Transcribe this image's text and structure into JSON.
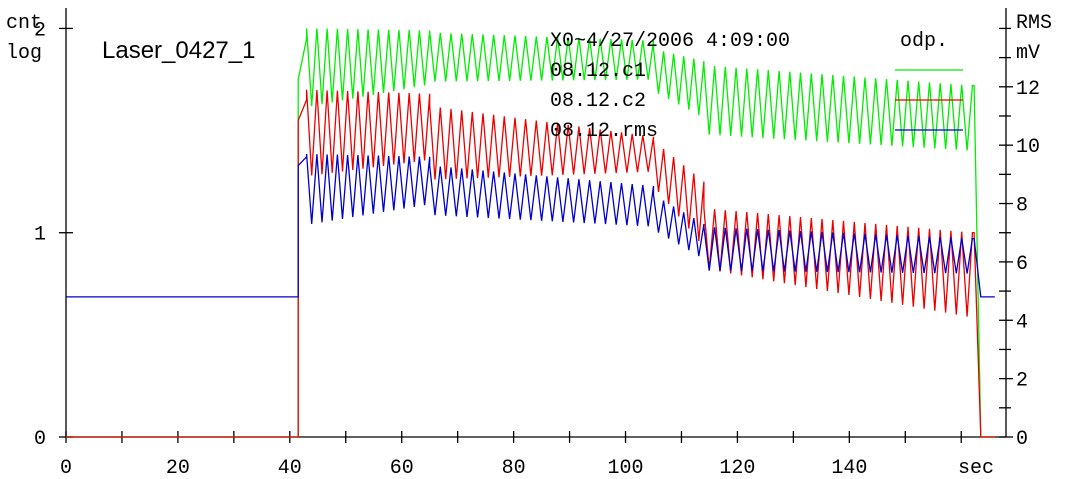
{
  "chart_data": {
    "type": "line",
    "title": "Laser_0427_1",
    "header": "X0~4/27/2006 4:09:00",
    "legend_title": "odp.",
    "left_axis": {
      "label_top": "cnt",
      "label_bottom": "log",
      "ylim": [
        0,
        2.1
      ],
      "ticks": [
        0,
        1,
        2
      ]
    },
    "right_axis": {
      "label_top": "RMS",
      "label_bottom": "mV",
      "ylim": [
        0,
        14.7
      ],
      "ticks": [
        0,
        2,
        4,
        6,
        8,
        10,
        12
      ]
    },
    "x_axis": {
      "label": "sec",
      "xlim": [
        0,
        168
      ],
      "ticks": [
        0,
        20,
        40,
        60,
        80,
        100,
        120,
        140
      ]
    },
    "series": [
      {
        "name": "08.12.c1",
        "color": "#00ee00",
        "axis": "left",
        "baseline": 0,
        "on_start": 41.5,
        "on_end": 163.5,
        "segments": [
          {
            "x0": 41.5,
            "x1": 43,
            "high": [
              1.75,
              1.95
            ],
            "low": [
              1.75,
              1.95
            ]
          },
          {
            "x0": 43,
            "x1": 65,
            "high": [
              2.0,
              1.99
            ],
            "low": [
              1.62,
              1.73
            ]
          },
          {
            "x0": 65,
            "x1": 105,
            "high": [
              1.98,
              1.94
            ],
            "low": [
              1.74,
              1.75
            ]
          },
          {
            "x0": 105,
            "x1": 114,
            "high": [
              1.9,
              1.84
            ],
            "low": [
              1.68,
              1.55
            ]
          },
          {
            "x0": 114,
            "x1": 162,
            "high": [
              1.82,
              1.72
            ],
            "low": [
              1.48,
              1.4
            ]
          }
        ],
        "period": 1.9
      },
      {
        "name": "08.12.c2",
        "color": "#ee0000",
        "axis": "left",
        "baseline": 0,
        "on_start": 41.5,
        "on_end": 163.5,
        "segments": [
          {
            "x0": 41.5,
            "x1": 43,
            "high": [
              1.55,
              1.65
            ],
            "low": [
              1.55,
              1.65
            ]
          },
          {
            "x0": 43,
            "x1": 65,
            "high": [
              1.7,
              1.68
            ],
            "low": [
              1.28,
              1.36
            ]
          },
          {
            "x0": 65,
            "x1": 105,
            "high": [
              1.62,
              1.47
            ],
            "low": [
              1.26,
              1.3
            ]
          },
          {
            "x0": 105,
            "x1": 114,
            "high": [
              1.45,
              1.25
            ],
            "low": [
              1.2,
              0.9
            ]
          },
          {
            "x0": 114,
            "x1": 162,
            "high": [
              1.12,
              1.0
            ],
            "low": [
              0.82,
              0.58
            ]
          }
        ],
        "period": 1.9
      },
      {
        "name": "08.12.rms",
        "color": "#0000cc",
        "axis": "right",
        "baseline": 4.8,
        "on_start": 41.5,
        "on_end": 163.5,
        "segments": [
          {
            "x0": 41.5,
            "x1": 43,
            "high": [
              9.3,
              9.6
            ],
            "low": [
              9.3,
              9.6
            ]
          },
          {
            "x0": 43,
            "x1": 65,
            "high": [
              9.7,
              9.6
            ],
            "low": [
              7.3,
              8.0
            ]
          },
          {
            "x0": 65,
            "x1": 105,
            "high": [
              9.3,
              8.6
            ],
            "low": [
              7.6,
              7.2
            ]
          },
          {
            "x0": 105,
            "x1": 114,
            "high": [
              8.3,
              7.3
            ],
            "low": [
              7.0,
              6.0
            ]
          },
          {
            "x0": 114,
            "x1": 162,
            "high": [
              7.2,
              6.8
            ],
            "low": [
              5.7,
              5.6
            ]
          }
        ],
        "period": 1.9
      }
    ]
  }
}
